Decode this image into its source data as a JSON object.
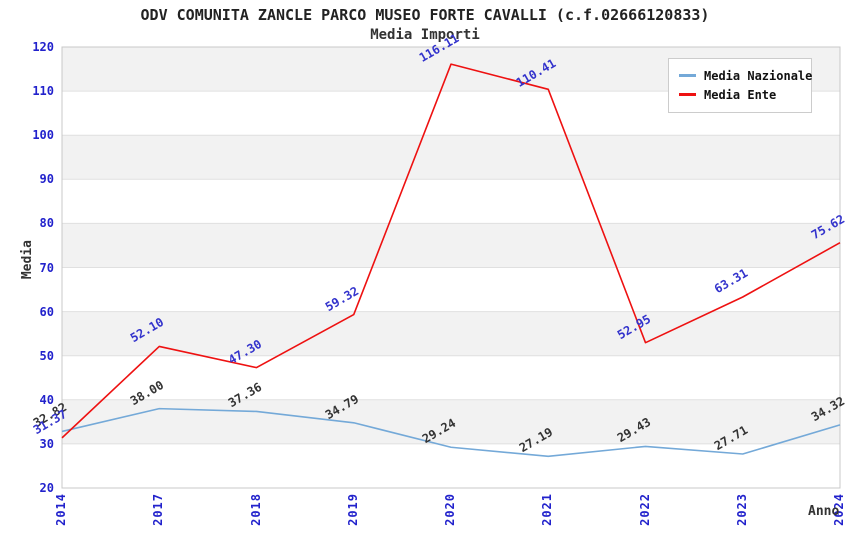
{
  "header": {
    "title": "ODV COMUNITA ZANCLE PARCO MUSEO FORTE CAVALLI (c.f.02666120833)",
    "subtitle": "Media Importi"
  },
  "chart_data": {
    "type": "line",
    "title": "ODV COMUNITA ZANCLE PARCO MUSEO FORTE CAVALLI (c.f.02666120833)",
    "subtitle": "Media Importi",
    "xlabel": "Anno",
    "ylabel": "Media",
    "categories": [
      "2014",
      "2017",
      "2018",
      "2019",
      "2020",
      "2021",
      "2022",
      "2023",
      "2024"
    ],
    "series": [
      {
        "name": "Media Nazionale",
        "color": "#74a9d8",
        "label_color": "#333333",
        "values": [
          32.82,
          38.0,
          37.36,
          34.79,
          29.24,
          27.19,
          29.43,
          27.71,
          34.32
        ],
        "labels": [
          "32.82",
          "38.00",
          "37.36",
          "34.79",
          "29.24",
          "27.19",
          "29.43",
          "27.71",
          "34.32"
        ]
      },
      {
        "name": "Media Ente",
        "color": "#ee1111",
        "label_color": "#3333cc",
        "values": [
          31.37,
          52.1,
          47.3,
          59.32,
          116.11,
          110.41,
          52.95,
          63.31,
          75.62
        ],
        "labels": [
          "31.37",
          "52.10",
          "47.30",
          "59.32",
          "116.11",
          "110.41",
          "52.95",
          "63.31",
          "75.62"
        ]
      }
    ],
    "ylim": [
      20,
      120
    ],
    "yticks": [
      20,
      30,
      40,
      50,
      60,
      70,
      80,
      90,
      100,
      110,
      120
    ],
    "grid": true,
    "legend_position": "top-right",
    "colors": {
      "band": "#f2f2f2",
      "grid": "#e0e0e0",
      "axis_border": "#c8c8c8",
      "tick_label": "#2222cc",
      "text": "#333333"
    }
  }
}
